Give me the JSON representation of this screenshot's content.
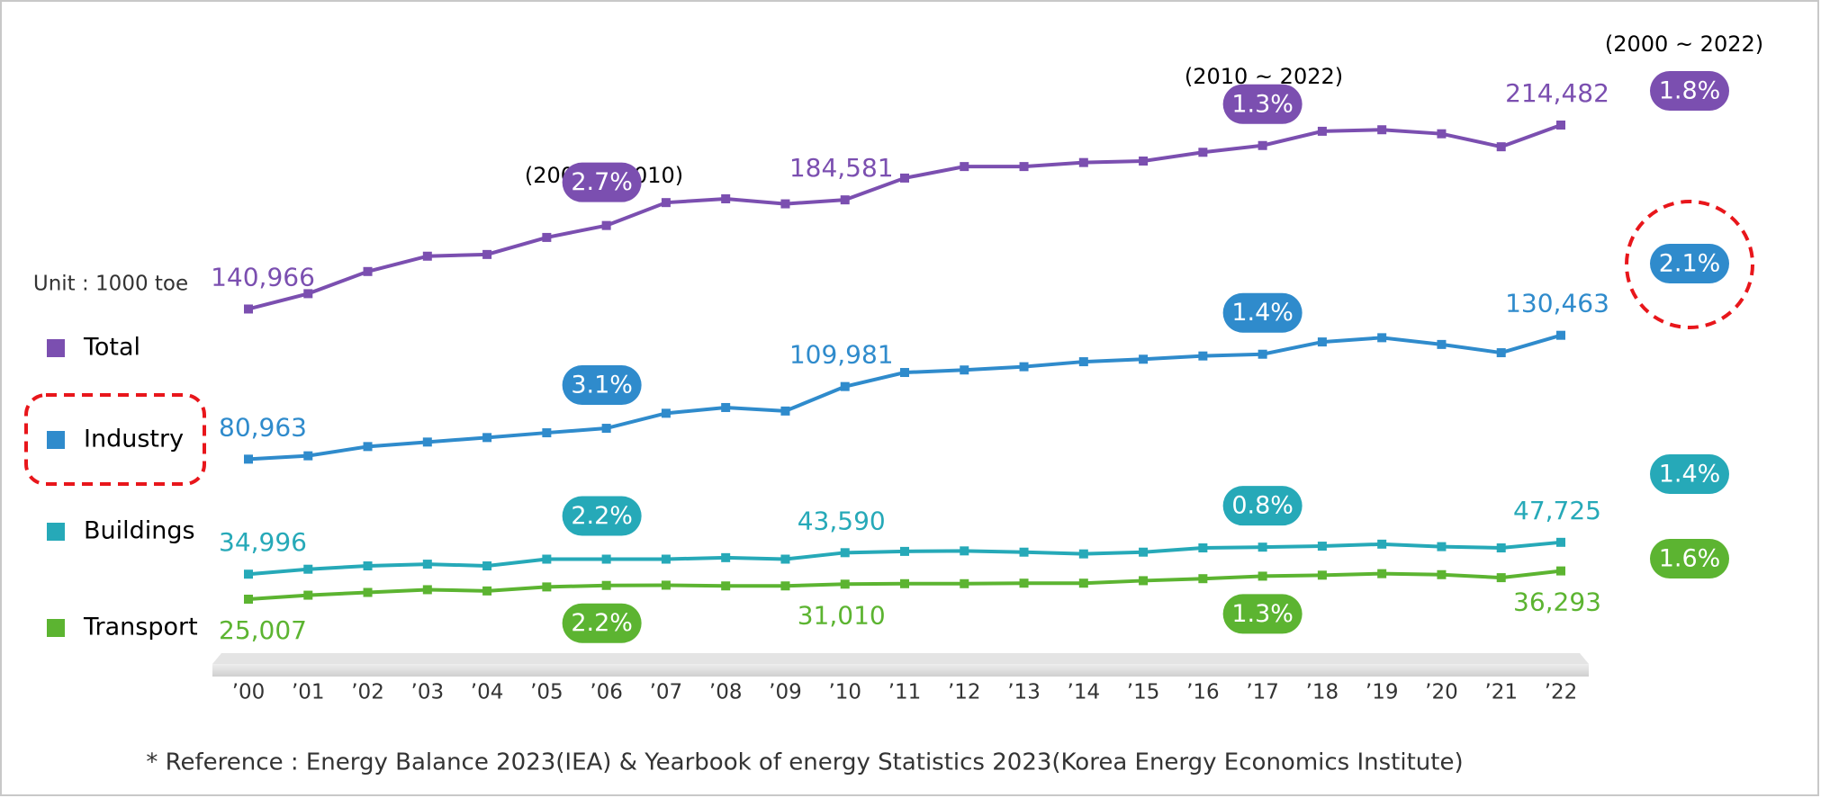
{
  "chart_data": {
    "type": "line",
    "unit_label": "Unit : 1000 toe",
    "periods": [
      "(2000 ~ 2010)",
      "(2010 ~ 2022)",
      "(2000 ~ 2022)"
    ],
    "categories": [
      "’00",
      "’01",
      "’02",
      "’03",
      "’04",
      "’05",
      "’06",
      "’07",
      "’08",
      "’09",
      "’10",
      "’11",
      "’12",
      "’13",
      "’14",
      "’15",
      "’16",
      "’17",
      "’18",
      "’19",
      "’20",
      "’21",
      "’22"
    ],
    "series": [
      {
        "name": "Total",
        "color": "#7b4fb0",
        "values": [
          140966,
          147100,
          155950,
          162080,
          162760,
          169570,
          174340,
          183500,
          185000,
          183000,
          184581,
          193300,
          197900,
          197900,
          199500,
          200100,
          203600,
          206300,
          212000,
          212600,
          211000,
          205800,
          214482
        ],
        "value_labels": [
          "140,966",
          null,
          null,
          null,
          null,
          null,
          null,
          null,
          null,
          null,
          "184,581",
          null,
          null,
          null,
          null,
          null,
          null,
          null,
          null,
          null,
          null,
          null,
          "214,482"
        ],
        "growth": [
          "2.7%",
          "1.3%",
          "1.8%"
        ]
      },
      {
        "name": "Industry",
        "color": "#2f8bcc",
        "values": [
          80963,
          82300,
          86000,
          87800,
          89600,
          91500,
          93300,
          99300,
          101600,
          100200,
          109981,
          115600,
          116600,
          117900,
          119900,
          120900,
          122200,
          122900,
          127800,
          129500,
          126800,
          123500,
          130463
        ],
        "value_labels": [
          "80,963",
          null,
          null,
          null,
          null,
          null,
          null,
          null,
          null,
          null,
          "109,981",
          null,
          null,
          null,
          null,
          null,
          null,
          null,
          null,
          null,
          null,
          null,
          "130,463"
        ],
        "growth": [
          "3.1%",
          "1.4%",
          "2.1%"
        ]
      },
      {
        "name": "Buildings",
        "color": "#26a9b8",
        "values": [
          34996,
          36980,
          38300,
          39000,
          38300,
          41000,
          41000,
          41000,
          41600,
          41000,
          43590,
          44100,
          44300,
          43800,
          43100,
          43800,
          45500,
          45800,
          46200,
          47000,
          46000,
          45500,
          47725
        ],
        "value_labels": [
          "34,996",
          null,
          null,
          null,
          null,
          null,
          null,
          null,
          null,
          null,
          "43,590",
          null,
          null,
          null,
          null,
          null,
          null,
          null,
          null,
          null,
          null,
          null,
          "47,725"
        ],
        "growth": [
          "2.2%",
          "0.8%",
          "1.4%"
        ]
      },
      {
        "name": "Transport",
        "color": "#5cb431",
        "values": [
          25007,
          26600,
          27700,
          28800,
          28300,
          29900,
          30500,
          30600,
          30300,
          30300,
          31010,
          31200,
          31200,
          31400,
          31400,
          32400,
          33200,
          34200,
          34600,
          35200,
          34800,
          33600,
          36293
        ],
        "value_labels": [
          "25,007",
          null,
          null,
          null,
          null,
          null,
          null,
          null,
          null,
          null,
          "31,010",
          null,
          null,
          null,
          null,
          null,
          null,
          null,
          null,
          null,
          null,
          null,
          "36,293"
        ],
        "growth": [
          "2.2%",
          "1.3%",
          "1.6%"
        ]
      }
    ],
    "note": "* Reference : Energy Balance 2023(IEA) & Yearbook of energy Statistics 2023(Korea Energy Economics Institute)"
  }
}
